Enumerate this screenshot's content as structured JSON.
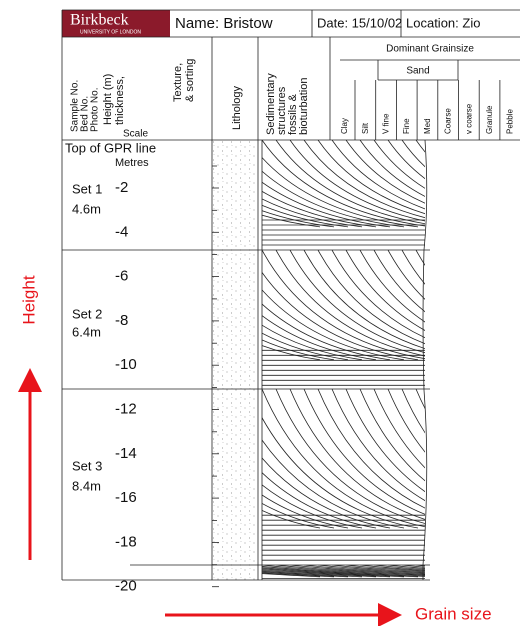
{
  "header": {
    "logo": "Birkbeck",
    "logo_sub": "UNIVERSITY OF LONDON",
    "name": "Name: Bristow",
    "date": "Date: 15/10/02",
    "location": "Location: Zio"
  },
  "columns": {
    "sample": [
      "Sample No.",
      "Bed No.",
      "Photo No."
    ],
    "height": [
      "Height (m)",
      "thickness,"
    ],
    "scale": "Scale",
    "texture": [
      "Texture,",
      "& sorting"
    ],
    "lithology": "Lithology",
    "structures": [
      "Sedimentary",
      "structures",
      "fossils &",
      "bioturbation"
    ]
  },
  "grain_size": {
    "title": "Dominant Grainsize",
    "sand": "Sand",
    "classes": [
      "Clay",
      "Silt",
      "V fine",
      "Fine",
      "Med",
      "Coarse",
      "v coarse",
      "Granule",
      "Pebble"
    ]
  },
  "scale": {
    "top": "Top of GPR line",
    "unit": "Metres",
    "ticks": [
      "-2",
      "-4",
      "-6",
      "-8",
      "-10",
      "-12",
      "-14",
      "-16",
      "-18",
      "-20"
    ]
  },
  "sets": [
    {
      "name": "Set 1",
      "thickness": "4.6m"
    },
    {
      "name": "Set 2",
      "thickness": "6.4m"
    },
    {
      "name": "Set 3",
      "thickness": "8.4m"
    }
  ],
  "annotations": {
    "height": "Height",
    "grain_size": "Grain size"
  }
}
